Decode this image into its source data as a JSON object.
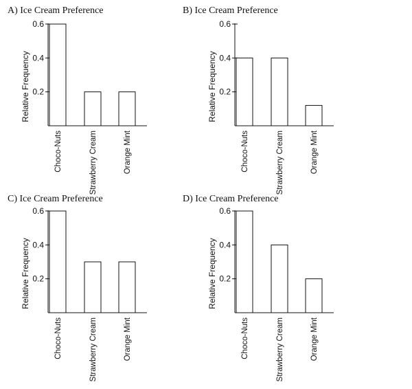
{
  "colors": {
    "ink": "#111111",
    "bar_fill": "#ffffff",
    "background": "#ffffff"
  },
  "chart_data": [
    {
      "type": "bar",
      "title": "A) Ice Cream Preference",
      "xlabel": "",
      "ylabel": "Relative Frequency",
      "categories": [
        "Choco-Nuts",
        "Strawberry Cream",
        "Orange Mint"
      ],
      "values": [
        0.6,
        0.2,
        0.2
      ],
      "yticks": [
        0.2,
        0.4,
        0.6
      ],
      "ytick_labels": [
        "0.2",
        "0.4",
        "0.6"
      ],
      "ylim": [
        0,
        0.6
      ],
      "grid": false,
      "legend": "none"
    },
    {
      "type": "bar",
      "title": "B) Ice Cream Preference",
      "xlabel": "",
      "ylabel": "Relative Frequency",
      "categories": [
        "Choco-Nuts",
        "Strawberry Cream",
        "Orange Mint"
      ],
      "values": [
        0.4,
        0.4,
        0.12
      ],
      "yticks": [
        0.2,
        0.4,
        0.6
      ],
      "ytick_labels": [
        "0.2",
        "0.4",
        "0.6"
      ],
      "ylim": [
        0,
        0.6
      ],
      "grid": false,
      "legend": "none"
    },
    {
      "type": "bar",
      "title": "C) Ice Cream Preference",
      "xlabel": "",
      "ylabel": "Relative Frequency",
      "categories": [
        "Choco-Nuts",
        "Strawberry Cream",
        "Orange Mint"
      ],
      "values": [
        0.6,
        0.3,
        0.3
      ],
      "yticks": [
        0.2,
        0.4,
        0.6
      ],
      "ytick_labels": [
        "0.2",
        "0.4",
        "0.6"
      ],
      "ylim": [
        0,
        0.6
      ],
      "grid": false,
      "legend": "none"
    },
    {
      "type": "bar",
      "title": "D) Ice Cream Preference",
      "xlabel": "",
      "ylabel": "Relative Frequency",
      "categories": [
        "Choco-Nuts",
        "Strawberry Cream",
        "Orange Mint"
      ],
      "values": [
        0.6,
        0.4,
        0.2
      ],
      "yticks": [
        0.2,
        0.4,
        0.6
      ],
      "ytick_labels": [
        "0.2",
        "0.4",
        "0.6"
      ],
      "ylim": [
        0,
        0.6
      ],
      "grid": false,
      "legend": "none"
    }
  ]
}
